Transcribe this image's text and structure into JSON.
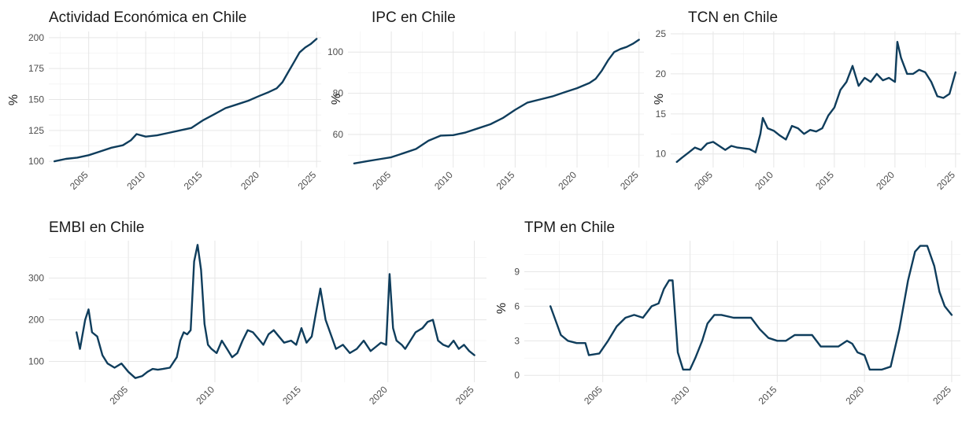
{
  "chart_data": [
    {
      "type": "line",
      "title": "Actividad Económica en Chile",
      "ylabel": "%",
      "xlabel": "",
      "color": "#0f3d5c",
      "grid": true,
      "xlim": [
        2001.5,
        2025.4
      ],
      "ylim": [
        95,
        205
      ],
      "x_ticks": [
        2005,
        2010,
        2015,
        2020,
        2025
      ],
      "y_ticks": [
        100,
        125,
        150,
        175,
        200
      ],
      "x": [
        2002.0,
        2003.0,
        2004.0,
        2005.0,
        2006.0,
        2007.0,
        2008.0,
        2008.7,
        2009.2,
        2010.0,
        2011.0,
        2012.0,
        2013.0,
        2014.0,
        2015.0,
        2016.0,
        2017.0,
        2018.0,
        2019.0,
        2020.0,
        2020.8,
        2021.5,
        2022.0,
        2022.5,
        2023.0,
        2023.5,
        2024.0,
        2024.5,
        2025.0
      ],
      "y": [
        100,
        102,
        103,
        105,
        108,
        111,
        113,
        117,
        122,
        120,
        121,
        123,
        125,
        127,
        133,
        138,
        143,
        146,
        149,
        153,
        156,
        159,
        164,
        172,
        180,
        188,
        192,
        195,
        199
      ]
    },
    {
      "type": "line",
      "title": "IPC en Chile",
      "ylabel": "%",
      "xlabel": "",
      "color": "#0f3d5c",
      "grid": true,
      "xlim": [
        2001.5,
        2025.4
      ],
      "ylim": [
        44,
        110
      ],
      "x_ticks": [
        2005,
        2010,
        2015,
        2020,
        2025
      ],
      "y_ticks": [
        60,
        80,
        100
      ],
      "x": [
        2002.0,
        2003.0,
        2004.0,
        2005.0,
        2006.0,
        2007.0,
        2008.0,
        2009.0,
        2010.0,
        2011.0,
        2012.0,
        2013.0,
        2014.0,
        2015.0,
        2016.0,
        2017.0,
        2018.0,
        2019.0,
        2020.0,
        2021.0,
        2021.5,
        2022.0,
        2022.5,
        2023.0,
        2023.5,
        2024.0,
        2024.5,
        2025.0
      ],
      "y": [
        46,
        47,
        48,
        49,
        51,
        53,
        57,
        59.5,
        59.7,
        61,
        63,
        65,
        68,
        72,
        75.5,
        77,
        78.5,
        80.5,
        82.5,
        85,
        87,
        91,
        96,
        100,
        101.5,
        102.5,
        104,
        106
      ]
    },
    {
      "type": "line",
      "title": "TCN en Chile",
      "ylabel": "%",
      "xlabel": "",
      "color": "#0f3d5c",
      "grid": true,
      "xlim": [
        2001.5,
        2025.4
      ],
      "ylim": [
        8.3,
        25.3
      ],
      "x_ticks": [
        2005,
        2010,
        2015,
        2020,
        2025
      ],
      "y_ticks": [
        10,
        15,
        20,
        25
      ],
      "x": [
        2002.0,
        2002.4,
        2003.0,
        2003.5,
        2004.0,
        2004.5,
        2005.0,
        2005.5,
        2006.0,
        2006.5,
        2007.0,
        2007.5,
        2008.0,
        2008.5,
        2008.9,
        2009.1,
        2009.5,
        2010.0,
        2010.5,
        2011.0,
        2011.5,
        2012.0,
        2012.5,
        2013.0,
        2013.5,
        2014.0,
        2014.5,
        2015.0,
        2015.5,
        2016.0,
        2016.5,
        2017.0,
        2017.5,
        2018.0,
        2018.5,
        2019.0,
        2019.5,
        2020.0,
        2020.2,
        2020.5,
        2021.0,
        2021.5,
        2022.0,
        2022.5,
        2023.0,
        2023.5,
        2024.0,
        2024.5,
        2025.0
      ],
      "y": [
        9.0,
        9.5,
        10.2,
        10.8,
        10.5,
        11.3,
        11.5,
        11.0,
        10.5,
        11.0,
        10.8,
        10.7,
        10.6,
        10.2,
        12.5,
        14.5,
        13.2,
        12.9,
        12.3,
        11.8,
        13.5,
        13.2,
        12.5,
        13.0,
        12.8,
        13.2,
        14.8,
        15.8,
        18.0,
        19.0,
        21.0,
        18.5,
        19.5,
        19.0,
        20.0,
        19.2,
        19.5,
        19.0,
        24.0,
        22.0,
        20.0,
        20.0,
        20.5,
        20.2,
        19.0,
        17.2,
        17.0,
        17.5,
        20.2
      ]
    },
    {
      "type": "line",
      "title": "EMBI en Chile",
      "ylabel": "",
      "xlabel": "",
      "color": "#0f3d5c",
      "grid": true,
      "xlim": [
        2000.4,
        2025.7
      ],
      "ylim": [
        50,
        390
      ],
      "x_ticks": [
        2005,
        2010,
        2015,
        2020,
        2025
      ],
      "y_ticks": [
        100,
        200,
        300
      ],
      "x": [
        2002.0,
        2002.2,
        2002.5,
        2002.7,
        2002.9,
        2003.2,
        2003.5,
        2003.8,
        2004.2,
        2004.6,
        2005.0,
        2005.4,
        2005.8,
        2006.1,
        2006.4,
        2006.7,
        2007.0,
        2007.4,
        2007.8,
        2008.0,
        2008.2,
        2008.4,
        2008.6,
        2008.8,
        2009.0,
        2009.2,
        2009.4,
        2009.6,
        2009.8,
        2010.1,
        2010.4,
        2010.7,
        2011.0,
        2011.3,
        2011.6,
        2011.9,
        2012.2,
        2012.5,
        2012.8,
        2013.1,
        2013.4,
        2013.7,
        2014.0,
        2014.4,
        2014.7,
        2015.0,
        2015.3,
        2015.6,
        2015.9,
        2016.1,
        2016.4,
        2016.7,
        2017.0,
        2017.4,
        2017.8,
        2018.2,
        2018.6,
        2019.0,
        2019.3,
        2019.6,
        2019.9,
        2020.1,
        2020.3,
        2020.5,
        2020.8,
        2021.0,
        2021.3,
        2021.6,
        2022.0,
        2022.3,
        2022.6,
        2022.9,
        2023.2,
        2023.5,
        2023.8,
        2024.1,
        2024.4,
        2024.7,
        2025.0
      ],
      "y": [
        170,
        130,
        200,
        225,
        170,
        160,
        115,
        95,
        85,
        95,
        75,
        60,
        65,
        75,
        82,
        80,
        82,
        85,
        110,
        150,
        170,
        165,
        175,
        340,
        380,
        320,
        190,
        140,
        130,
        120,
        150,
        130,
        110,
        120,
        150,
        175,
        170,
        155,
        140,
        165,
        175,
        160,
        145,
        150,
        140,
        180,
        145,
        160,
        230,
        275,
        200,
        165,
        130,
        140,
        120,
        130,
        150,
        125,
        135,
        145,
        140,
        310,
        180,
        150,
        140,
        130,
        150,
        170,
        180,
        195,
        200,
        150,
        140,
        135,
        150,
        130,
        140,
        125,
        115
      ]
    },
    {
      "type": "line",
      "title": "TPM en Chile",
      "ylabel": "%",
      "xlabel": "",
      "color": "#0f3d5c",
      "grid": true,
      "xlim": [
        2000.5,
        2025.5
      ],
      "ylim": [
        -0.6,
        11.7
      ],
      "x_ticks": [
        2005,
        2010,
        2015,
        2020,
        2025
      ],
      "y_ticks": [
        0,
        3,
        6,
        9
      ],
      "x": [
        2002.0,
        2002.6,
        2003.0,
        2003.5,
        2004.0,
        2004.2,
        2004.8,
        2005.3,
        2005.8,
        2006.3,
        2006.8,
        2007.3,
        2007.8,
        2008.2,
        2008.5,
        2008.8,
        2009.0,
        2009.3,
        2009.6,
        2010.0,
        2010.3,
        2010.7,
        2011.0,
        2011.4,
        2011.8,
        2012.5,
        2013.0,
        2013.5,
        2014.0,
        2014.5,
        2015.0,
        2015.5,
        2016.0,
        2016.5,
        2017.0,
        2017.5,
        2018.0,
        2018.5,
        2019.0,
        2019.3,
        2019.6,
        2020.0,
        2020.3,
        2020.6,
        2021.0,
        2021.5,
        2022.0,
        2022.5,
        2022.9,
        2023.2,
        2023.6,
        2024.0,
        2024.3,
        2024.6,
        2025.0
      ],
      "y": [
        6.0,
        3.5,
        3.0,
        2.8,
        2.8,
        1.75,
        1.9,
        3.0,
        4.25,
        5.0,
        5.25,
        5.0,
        6.0,
        6.25,
        7.5,
        8.25,
        8.25,
        2.0,
        0.5,
        0.5,
        1.5,
        3.0,
        4.5,
        5.25,
        5.25,
        5.0,
        5.0,
        5.0,
        4.0,
        3.25,
        3.0,
        3.0,
        3.5,
        3.5,
        3.5,
        2.5,
        2.5,
        2.5,
        3.0,
        2.75,
        2.0,
        1.75,
        0.5,
        0.5,
        0.5,
        0.75,
        4.0,
        8.25,
        10.75,
        11.25,
        11.25,
        9.5,
        7.25,
        6.0,
        5.25
      ]
    }
  ]
}
